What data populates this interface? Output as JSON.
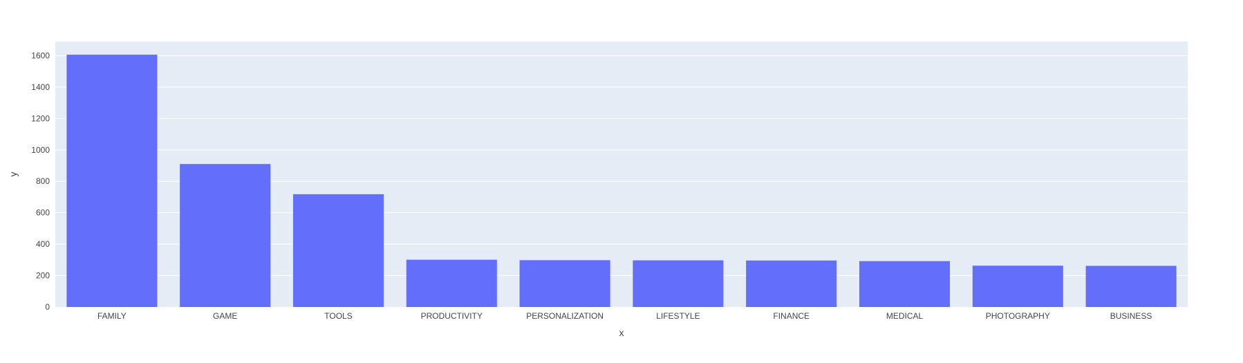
{
  "chart_data": {
    "type": "bar",
    "xlabel": "x",
    "ylabel": "y",
    "categories": [
      "FAMILY",
      "GAME",
      "TOOLS",
      "PRODUCTIVITY",
      "PERSONALIZATION",
      "LIFESTYLE",
      "FINANCE",
      "MEDICAL",
      "PHOTOGRAPHY",
      "BUSINESS"
    ],
    "values": [
      1606,
      910,
      718,
      301,
      298,
      297,
      296,
      292,
      263,
      262
    ],
    "ylim": [
      0,
      1690
    ],
    "yticks": [
      0,
      200,
      400,
      600,
      800,
      1000,
      1200,
      1400,
      1600
    ],
    "grid": true,
    "legend": "none",
    "colors": {
      "bar": "#636efa",
      "plot_bg": "#e5ecf6",
      "grid": "#ffffff",
      "text": "#444444"
    }
  }
}
